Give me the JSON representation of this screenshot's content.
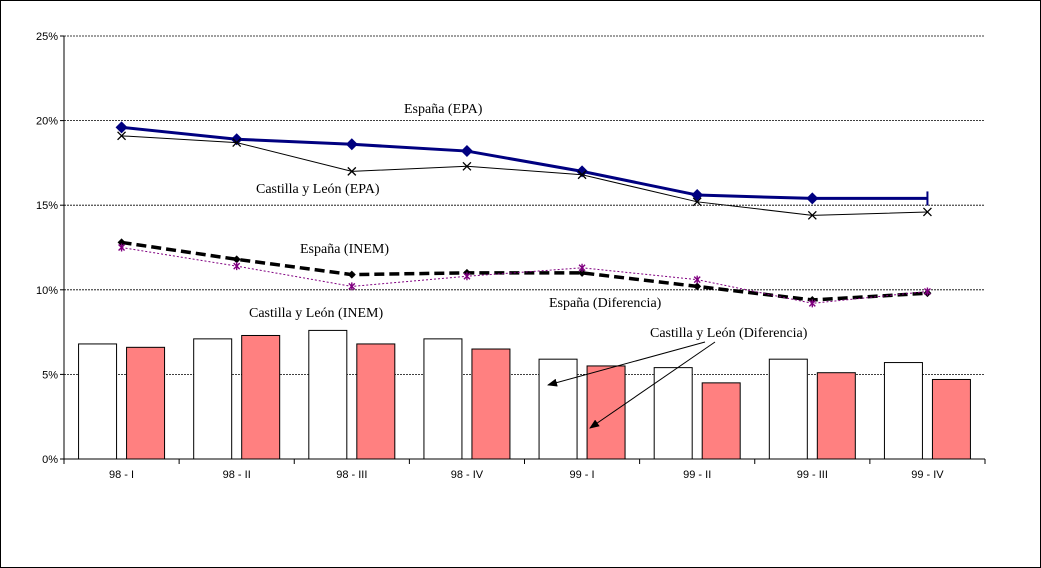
{
  "chart_data": {
    "type": "bar",
    "categories": [
      "98 - I",
      "98 - II",
      "98 - III",
      "98 - IV",
      "99 - I",
      "99 - II",
      "99 - III",
      "99 - IV"
    ],
    "y_ticks": [
      "0%",
      "5%",
      "10%",
      "15%",
      "20%",
      "25%"
    ],
    "ylim": [
      0,
      25
    ],
    "grid": true,
    "series": [
      {
        "name": "España (EPA)",
        "kind": "line",
        "values": [
          19.6,
          18.9,
          18.6,
          18.2,
          17.0,
          15.6,
          15.4,
          15.4
        ],
        "color": "#000080"
      },
      {
        "name": "Castilla y León (EPA)",
        "kind": "line",
        "values": [
          19.1,
          18.7,
          17.0,
          17.3,
          16.8,
          15.2,
          14.4,
          14.6
        ],
        "color": "#000000"
      },
      {
        "name": "España (INEM)",
        "kind": "line",
        "values": [
          12.8,
          11.8,
          10.9,
          11.0,
          11.0,
          10.2,
          9.4,
          9.8
        ],
        "color": "#000000"
      },
      {
        "name": "Castilla y León (INEM)",
        "kind": "line",
        "values": [
          12.5,
          11.4,
          10.2,
          10.8,
          11.3,
          10.6,
          9.2,
          9.9
        ],
        "color": "#800080"
      },
      {
        "name": "España (Diferencia)",
        "kind": "bar",
        "values": [
          6.8,
          7.1,
          7.6,
          7.1,
          5.9,
          5.4,
          5.9,
          5.7
        ],
        "color": "#ffffff"
      },
      {
        "name": "Castilla y León (Diferencia)",
        "kind": "bar",
        "values": [
          6.6,
          7.3,
          6.8,
          6.5,
          5.5,
          4.5,
          5.1,
          4.7
        ],
        "color": "#ff8080"
      }
    ],
    "annotations": {
      "espana_epa": "España (EPA)",
      "cyl_epa": "Castilla y León (EPA)",
      "espana_inem": "España (INEM)",
      "cyl_inem": "Castilla y León (INEM)",
      "espana_dif": "España (Diferencia)",
      "cyl_dif": "Castilla y León (Diferencia)"
    }
  }
}
